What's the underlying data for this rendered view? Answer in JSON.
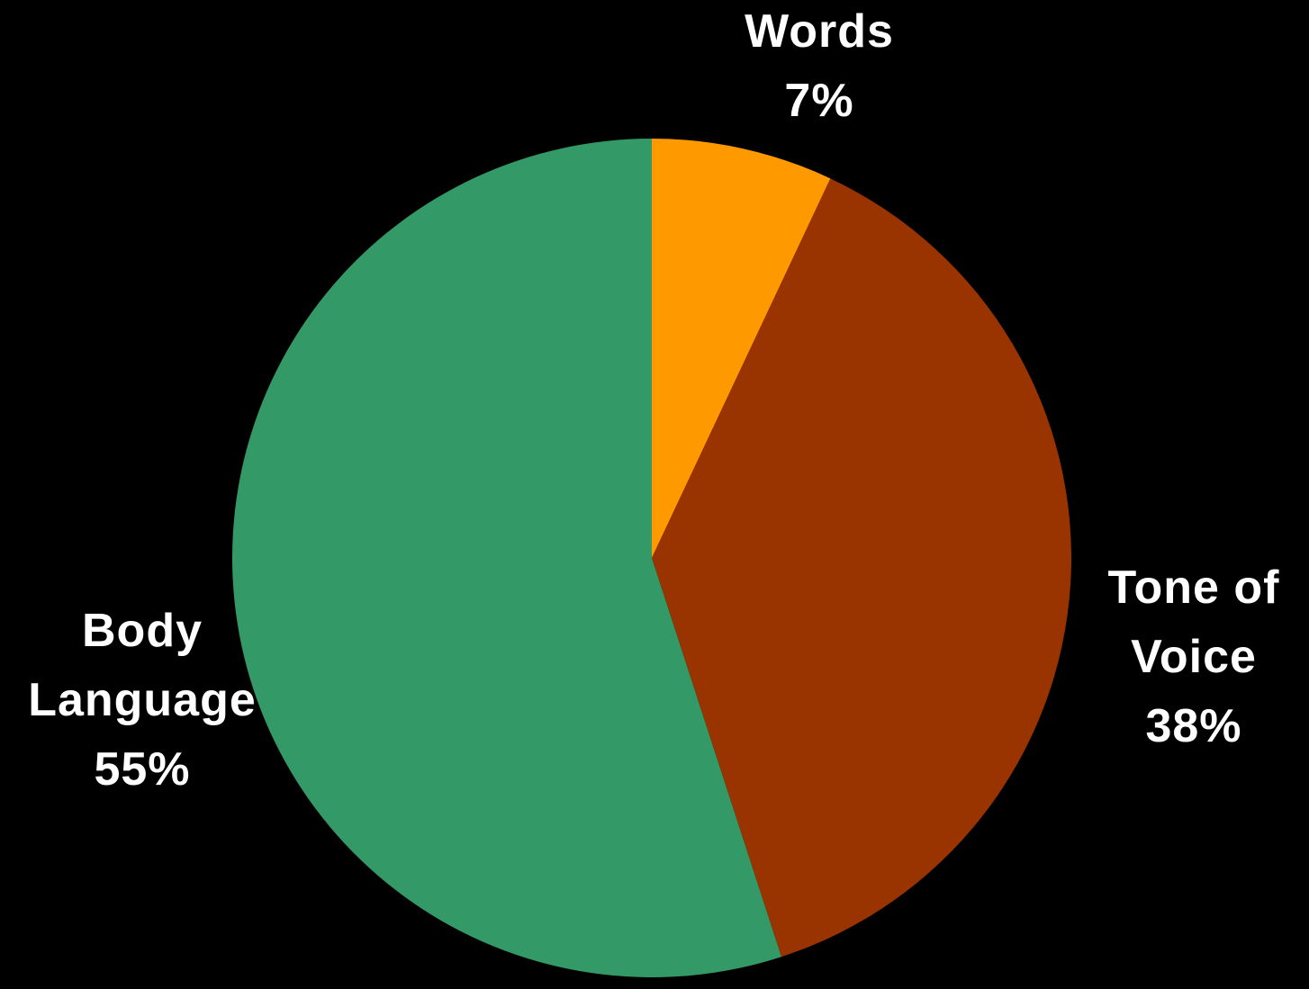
{
  "chart_data": {
    "type": "pie",
    "title": "",
    "start_angle_deg": 0,
    "direction": "clockwise",
    "slices": [
      {
        "label_lines": [
          "Words"
        ],
        "percent_label": "7%",
        "value": 7,
        "color": "#ff9900"
      },
      {
        "label_lines": [
          "Tone of",
          "Voice"
        ],
        "percent_label": "38%",
        "value": 38,
        "color": "#993300"
      },
      {
        "label_lines": [
          "Body",
          "Language"
        ],
        "percent_label": "55%",
        "value": 55,
        "color": "#339966"
      }
    ],
    "background": "#000000",
    "label_color": "#ffffff"
  }
}
